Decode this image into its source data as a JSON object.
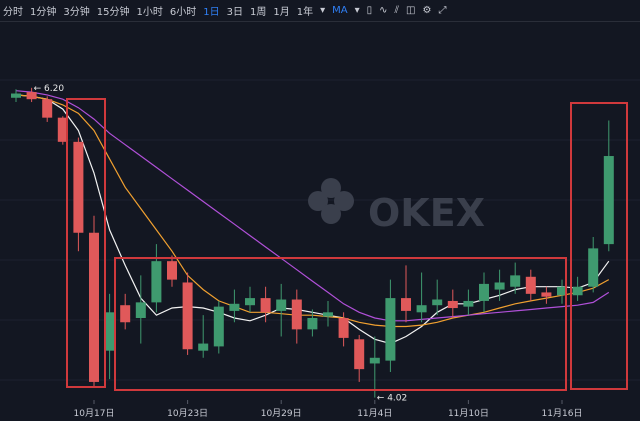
{
  "toolbar": {
    "intervals": [
      "分时",
      "1分钟",
      "3分钟",
      "15分钟",
      "1小时",
      "6小时",
      "1日",
      "3日",
      "1周",
      "1月",
      "1年"
    ],
    "indicator": "MA"
  },
  "chart_data": {
    "type": "candlestick",
    "watermark": "OKEX",
    "categories": [
      null,
      null,
      null,
      null,
      null,
      "10月17日",
      null,
      null,
      null,
      null,
      null,
      "10月23日",
      null,
      null,
      null,
      null,
      null,
      "10月29日",
      null,
      null,
      null,
      null,
      null,
      "11月4日",
      null,
      null,
      null,
      null,
      null,
      "11月10日",
      null,
      null,
      null,
      null,
      null,
      "11月16日",
      null,
      null,
      null
    ],
    "open": [
      6.13,
      6.17,
      6.12,
      5.99,
      5.82,
      5.18,
      4.35,
      4.67,
      4.58,
      4.69,
      4.98,
      4.83,
      4.35,
      4.38,
      4.63,
      4.67,
      4.72,
      4.63,
      4.71,
      4.5,
      4.59,
      4.58,
      4.43,
      4.26,
      4.28,
      4.72,
      4.62,
      4.67,
      4.7,
      4.66,
      4.7,
      4.78,
      4.8,
      4.87,
      4.76,
      4.74,
      4.74,
      4.8,
      5.1
    ],
    "high": [
      6.19,
      6.2,
      6.14,
      6.0,
      5.85,
      5.3,
      4.75,
      4.75,
      4.88,
      5.1,
      5.02,
      4.9,
      4.6,
      4.7,
      4.78,
      4.8,
      4.8,
      4.82,
      4.78,
      4.64,
      4.7,
      4.62,
      4.46,
      4.45,
      4.85,
      4.95,
      4.9,
      4.85,
      4.78,
      4.78,
      4.9,
      4.92,
      4.97,
      4.92,
      4.8,
      4.85,
      4.87,
      5.15,
      5.97
    ],
    "low": [
      6.1,
      6.1,
      5.96,
      5.8,
      5.05,
      4.1,
      4.15,
      4.5,
      4.4,
      4.62,
      4.8,
      4.32,
      4.3,
      4.33,
      4.55,
      4.62,
      4.55,
      4.45,
      4.4,
      4.45,
      4.52,
      4.38,
      4.13,
      4.02,
      4.2,
      4.55,
      4.55,
      4.6,
      4.58,
      4.6,
      4.62,
      4.7,
      4.75,
      4.7,
      4.68,
      4.68,
      4.7,
      4.76,
      5.05
    ],
    "close": [
      6.16,
      6.12,
      5.99,
      5.82,
      5.18,
      4.13,
      4.62,
      4.55,
      4.69,
      4.98,
      4.85,
      4.36,
      4.4,
      4.66,
      4.68,
      4.72,
      4.62,
      4.71,
      4.5,
      4.58,
      4.62,
      4.44,
      4.22,
      4.3,
      4.72,
      4.63,
      4.67,
      4.71,
      4.65,
      4.7,
      4.82,
      4.83,
      4.88,
      4.75,
      4.73,
      4.8,
      4.8,
      5.07,
      5.72
    ],
    "up_color": "#3f9a6f",
    "down_color": "#e0595a",
    "ma": [
      {
        "color": "#f2f2f2",
        "values": [
          6.15,
          6.14,
          6.12,
          6.05,
          5.9,
          5.6,
          5.2,
          4.95,
          4.72,
          4.6,
          4.65,
          4.66,
          4.65,
          4.62,
          4.58,
          4.56,
          4.6,
          4.65,
          4.64,
          4.62,
          4.6,
          4.58,
          4.5,
          4.43,
          4.4,
          4.45,
          4.52,
          4.62,
          4.68,
          4.68,
          4.71,
          4.74,
          4.78,
          4.8,
          4.8,
          4.8,
          4.79,
          4.83,
          4.98
        ]
      },
      {
        "color": "#f0a030",
        "values": [
          6.15,
          6.14,
          6.12,
          6.08,
          6.02,
          5.9,
          5.7,
          5.5,
          5.35,
          5.2,
          5.05,
          4.88,
          4.78,
          4.7,
          4.66,
          4.62,
          4.62,
          4.61,
          4.6,
          4.6,
          4.59,
          4.58,
          4.55,
          4.53,
          4.52,
          4.52,
          4.53,
          4.55,
          4.58,
          4.6,
          4.62,
          4.65,
          4.68,
          4.7,
          4.72,
          4.74,
          4.76,
          4.79,
          4.85
        ]
      },
      {
        "color": "#b050d8",
        "values": [
          6.18,
          6.17,
          6.15,
          6.12,
          6.06,
          5.98,
          5.88,
          5.8,
          5.72,
          5.64,
          5.56,
          5.48,
          5.4,
          5.32,
          5.24,
          5.16,
          5.08,
          5.0,
          4.92,
          4.84,
          4.76,
          4.68,
          4.62,
          4.58,
          4.56,
          4.56,
          4.57,
          4.58,
          4.59,
          4.6,
          4.61,
          4.62,
          4.63,
          4.64,
          4.65,
          4.66,
          4.67,
          4.69,
          4.76
        ]
      }
    ],
    "annotations": [
      "6.20",
      "4.02"
    ],
    "ylim": [
      4.0,
      6.6
    ]
  }
}
